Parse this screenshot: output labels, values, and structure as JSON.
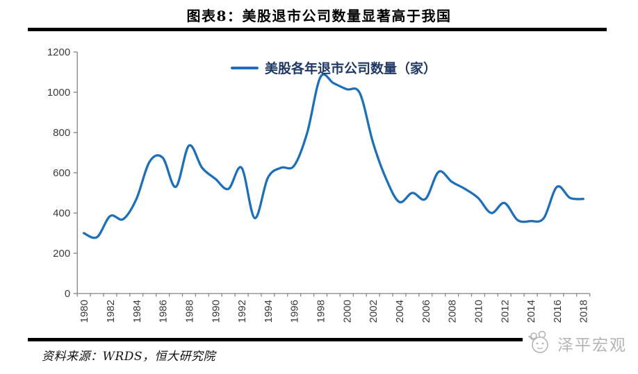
{
  "header": {
    "title": "图表8：美股退市公司数量显著高于我国"
  },
  "chart_data": {
    "type": "line",
    "title": "图表8：美股退市公司数量显著高于我国",
    "legend": "美股各年退市公司数量（家）",
    "legend_position": "top-center",
    "xlabel": "",
    "ylabel": "",
    "x": [
      1980,
      1981,
      1982,
      1983,
      1984,
      1985,
      1986,
      1987,
      1988,
      1989,
      1990,
      1991,
      1992,
      1993,
      1994,
      1995,
      1996,
      1997,
      1998,
      1999,
      2000,
      2001,
      2002,
      2003,
      2004,
      2005,
      2006,
      2007,
      2008,
      2009,
      2010,
      2011,
      2012,
      2013,
      2014,
      2015,
      2016,
      2017,
      2018
    ],
    "series": [
      {
        "name": "美股各年退市公司数量（家）",
        "values": [
          300,
          280,
          385,
          370,
          470,
          655,
          675,
          530,
          735,
          625,
          570,
          520,
          625,
          375,
          575,
          625,
          635,
          800,
          1075,
          1045,
          1015,
          995,
          750,
          570,
          455,
          500,
          470,
          605,
          555,
          520,
          475,
          400,
          450,
          365,
          360,
          375,
          530,
          475,
          470
        ]
      }
    ],
    "ylim": [
      0,
      1200
    ],
    "yticks": [
      0,
      200,
      400,
      600,
      800,
      1000,
      1200
    ],
    "xtick_labels": [
      "1980",
      "1982",
      "1984",
      "1986",
      "1988",
      "1990",
      "1992",
      "1994",
      "1996",
      "1998",
      "2000",
      "2002",
      "2004",
      "2006",
      "2008",
      "2010",
      "2012",
      "2014",
      "2016",
      "2018"
    ],
    "grid": false,
    "smooth": true,
    "line_color": "#1C6FB8"
  },
  "footer": {
    "source": "资料来源：WRDS，恒大研究院",
    "watermark": "泽平宏观"
  },
  "colors": {
    "line": "#1C6FB8",
    "axis": "#808080",
    "tick_label": "#3a3a3a",
    "legend_text": "#1F3864",
    "rule": "#000000",
    "watermark": "#b5b5b5"
  }
}
